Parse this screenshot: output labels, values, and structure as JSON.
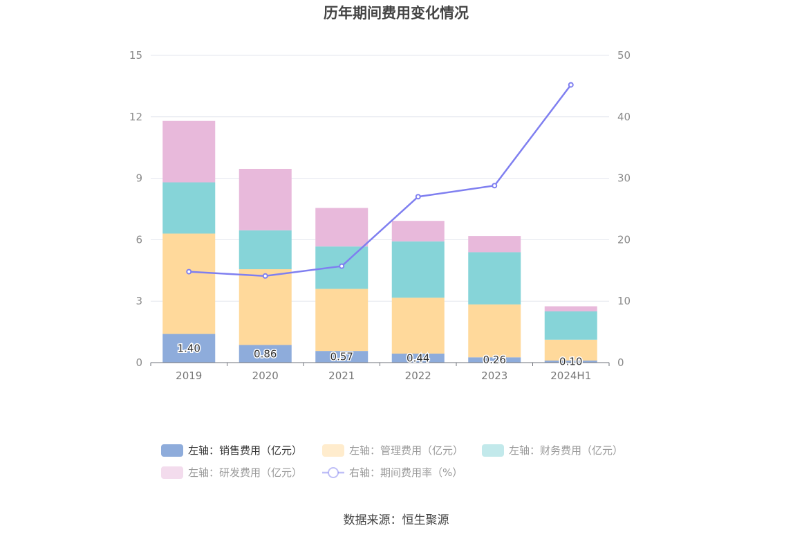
{
  "title": "历年期间费用变化情况",
  "source": "数据来源：恒生聚源",
  "colors": {
    "sales": "#8eacdb",
    "admin": "#ffd99b",
    "finance": "#86d4d8",
    "rnd": "#e8b9db",
    "rate": "#7f7ff0"
  },
  "chart_data": {
    "type": "bar",
    "stacked": true,
    "categories": [
      "2019",
      "2020",
      "2021",
      "2022",
      "2023",
      "2024H1"
    ],
    "left_axis": {
      "ylim": [
        0,
        15
      ],
      "ticks": [
        "0",
        "3",
        "6",
        "9",
        "12",
        "15"
      ]
    },
    "right_axis": {
      "ylim": [
        0,
        50
      ],
      "ticks": [
        "0",
        "10",
        "20",
        "30",
        "40",
        "50"
      ]
    },
    "grid": true,
    "legend_position": "bottom",
    "series": [
      {
        "key": "sales",
        "name": "左轴：销售费用（亿元）",
        "axis": "left",
        "type": "bar",
        "values": [
          1.4,
          0.86,
          0.57,
          0.44,
          0.26,
          0.1
        ],
        "labels": [
          "1.40",
          "0.86",
          "0.57",
          "0.44",
          "0.26",
          "0.10"
        ]
      },
      {
        "key": "admin",
        "name": "左轴：管理费用（亿元）",
        "axis": "left",
        "type": "bar",
        "values": [
          4.9,
          3.7,
          3.03,
          2.73,
          2.58,
          1.02
        ]
      },
      {
        "key": "finance",
        "name": "左轴：财务费用（亿元）",
        "axis": "left",
        "type": "bar",
        "values": [
          2.5,
          1.9,
          2.07,
          2.75,
          2.55,
          1.38
        ]
      },
      {
        "key": "rnd",
        "name": "左轴：研发费用（亿元）",
        "axis": "left",
        "type": "bar",
        "values": [
          3.0,
          3.0,
          1.88,
          1.0,
          0.79,
          0.25
        ]
      },
      {
        "key": "rate",
        "name": "右轴：期间费用率（%）",
        "axis": "right",
        "type": "line",
        "values": [
          14.8,
          14.1,
          15.7,
          27.0,
          28.8,
          45.2
        ]
      }
    ]
  }
}
